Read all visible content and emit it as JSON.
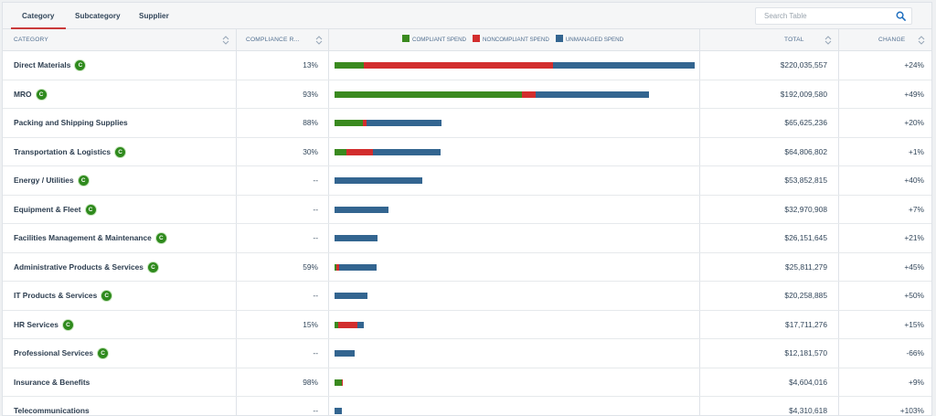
{
  "tabs": [
    {
      "label": "Category",
      "active": true
    },
    {
      "label": "Subcategory",
      "active": false
    },
    {
      "label": "Supplier",
      "active": false
    }
  ],
  "search": {
    "placeholder": "Search Table",
    "value": ""
  },
  "columns": {
    "category": "CATEGORY",
    "compliance_rate": "COMPLIANCE R...",
    "total": "TOTAL",
    "change": "CHANGE"
  },
  "legend": [
    {
      "label": "COMPLIANT SPEND",
      "color": "#3a8a1f"
    },
    {
      "label": "NONCOMPLIANT SPEND",
      "color": "#d22d2d"
    },
    {
      "label": "UNMANAGED SPEND",
      "color": "#336590"
    }
  ],
  "badge_label": "C",
  "chart_data": {
    "type": "bar",
    "orientation": "horizontal-stacked",
    "series_names": [
      "COMPLIANT SPEND",
      "NONCOMPLIANT SPEND",
      "UNMANAGED SPEND"
    ],
    "max_total": 220035557
  },
  "rows": [
    {
      "name": "Direct Materials",
      "badge": true,
      "rate": "13%",
      "total": "$220,035,557",
      "total_value": 220035557,
      "change": "+24%",
      "split": [
        0.08,
        0.527,
        0.393
      ]
    },
    {
      "name": "MRO",
      "badge": true,
      "rate": "93%",
      "total": "$192,009,580",
      "total_value": 192009580,
      "change": "+49%",
      "split": [
        0.597,
        0.043,
        0.36
      ]
    },
    {
      "name": "Packing and Shipping Supplies",
      "badge": false,
      "rate": "88%",
      "total": "$65,625,236",
      "total_value": 65625236,
      "change": "+20%",
      "split": [
        0.263,
        0.034,
        0.703
      ]
    },
    {
      "name": "Transportation & Logistics",
      "badge": true,
      "rate": "30%",
      "total": "$64,806,802",
      "total_value": 64806802,
      "change": "+1%",
      "split": [
        0.11,
        0.25,
        0.64
      ]
    },
    {
      "name": "Energy / Utilities",
      "badge": true,
      "rate": "--",
      "total": "$53,852,815",
      "total_value": 53852815,
      "change": "+40%",
      "split": [
        0,
        0,
        1
      ]
    },
    {
      "name": "Equipment & Fleet",
      "badge": true,
      "rate": "--",
      "total": "$32,970,908",
      "total_value": 32970908,
      "change": "+7%",
      "split": [
        0,
        0,
        1
      ]
    },
    {
      "name": "Facilities Management & Maintenance",
      "badge": true,
      "rate": "--",
      "total": "$26,151,645",
      "total_value": 26151645,
      "change": "+21%",
      "split": [
        0,
        0,
        1
      ]
    },
    {
      "name": "Administrative Products & Services",
      "badge": true,
      "rate": "59%",
      "total": "$25,811,279",
      "total_value": 25811279,
      "change": "+45%",
      "split": [
        0.05,
        0.06,
        0.89
      ]
    },
    {
      "name": "IT Products & Services",
      "badge": true,
      "rate": "--",
      "total": "$20,258,885",
      "total_value": 20258885,
      "change": "+50%",
      "split": [
        0,
        0,
        1
      ]
    },
    {
      "name": "HR Services",
      "badge": true,
      "rate": "15%",
      "total": "$17,711,276",
      "total_value": 17711276,
      "change": "+15%",
      "split": [
        0.12,
        0.66,
        0.22
      ]
    },
    {
      "name": "Professional Services",
      "badge": true,
      "rate": "--",
      "total": "$12,181,570",
      "total_value": 12181570,
      "change": "-66%",
      "split": [
        0,
        0,
        1
      ]
    },
    {
      "name": "Insurance & Benefits",
      "badge": false,
      "rate": "98%",
      "total": "$4,604,016",
      "total_value": 4604016,
      "change": "+9%",
      "split": [
        0.98,
        0.02,
        0
      ]
    },
    {
      "name": "Telecommunications",
      "badge": false,
      "rate": "--",
      "total": "$4,310,618",
      "total_value": 4310618,
      "change": "+103%",
      "split": [
        0,
        0,
        1
      ]
    }
  ]
}
